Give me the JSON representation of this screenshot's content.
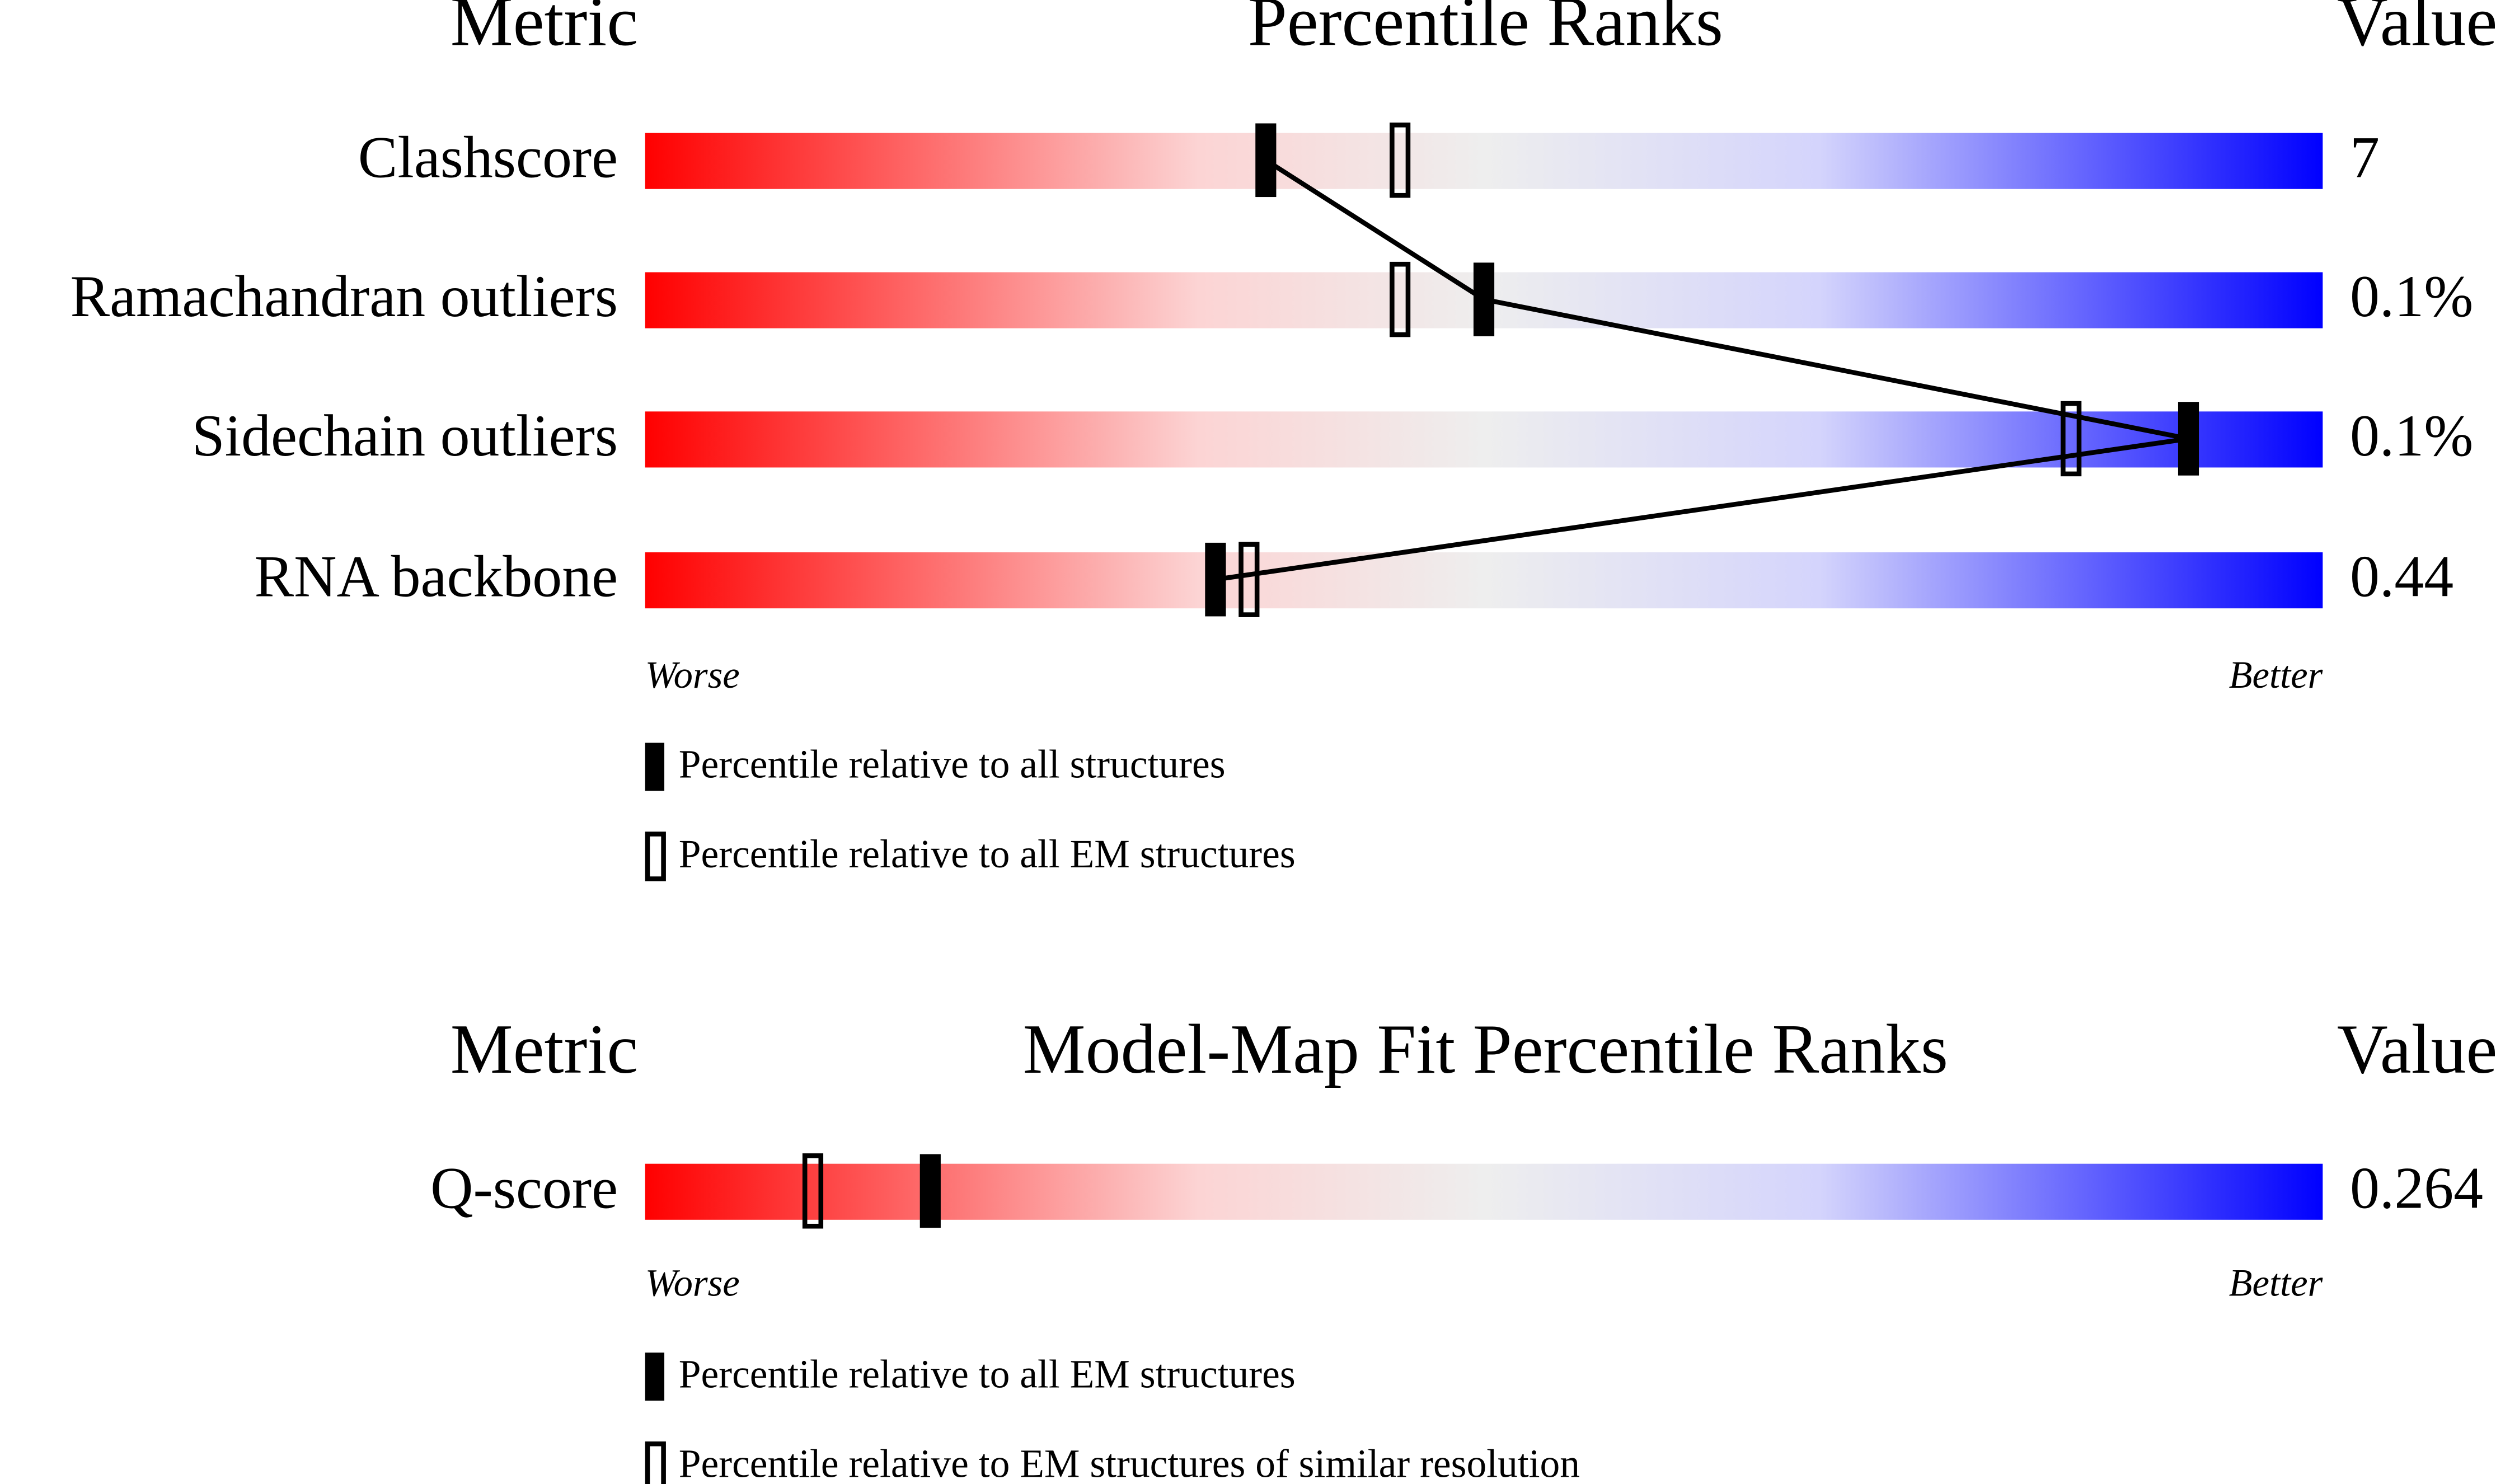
{
  "xlim": [
    0,
    100
  ],
  "panels": [
    {
      "headers": {
        "metric": "Metric",
        "title": "Percentile Ranks",
        "value": "Value"
      },
      "rows": [
        {
          "metric": "Clashscore",
          "value": "7",
          "percentile_filled": 37,
          "percentile_open": 45
        },
        {
          "metric": "Ramachandran outliers",
          "value": "0.1%",
          "percentile_filled": 50,
          "percentile_open": 45
        },
        {
          "metric": "Sidechain outliers",
          "value": "0.1%",
          "percentile_filled": 92,
          "percentile_open": 85
        },
        {
          "metric": "RNA backbone",
          "value": "0.44",
          "percentile_filled": 34,
          "percentile_open": 36
        }
      ],
      "connect_filled": true,
      "worse": "Worse",
      "better": "Better",
      "legend": {
        "filled": "Percentile relative to all structures",
        "open": "Percentile relative to all EM structures"
      }
    },
    {
      "headers": {
        "metric": "Metric",
        "title": "Model-Map Fit Percentile Ranks",
        "value": "Value"
      },
      "rows": [
        {
          "metric": "Q-score",
          "value": "0.264",
          "percentile_filled": 17,
          "percentile_open": 10
        }
      ],
      "connect_filled": false,
      "worse": "Worse",
      "better": "Better",
      "legend": {
        "filled": "Percentile relative to all EM structures",
        "open": "Percentile relative to EM structures of similar resolution"
      }
    }
  ]
}
